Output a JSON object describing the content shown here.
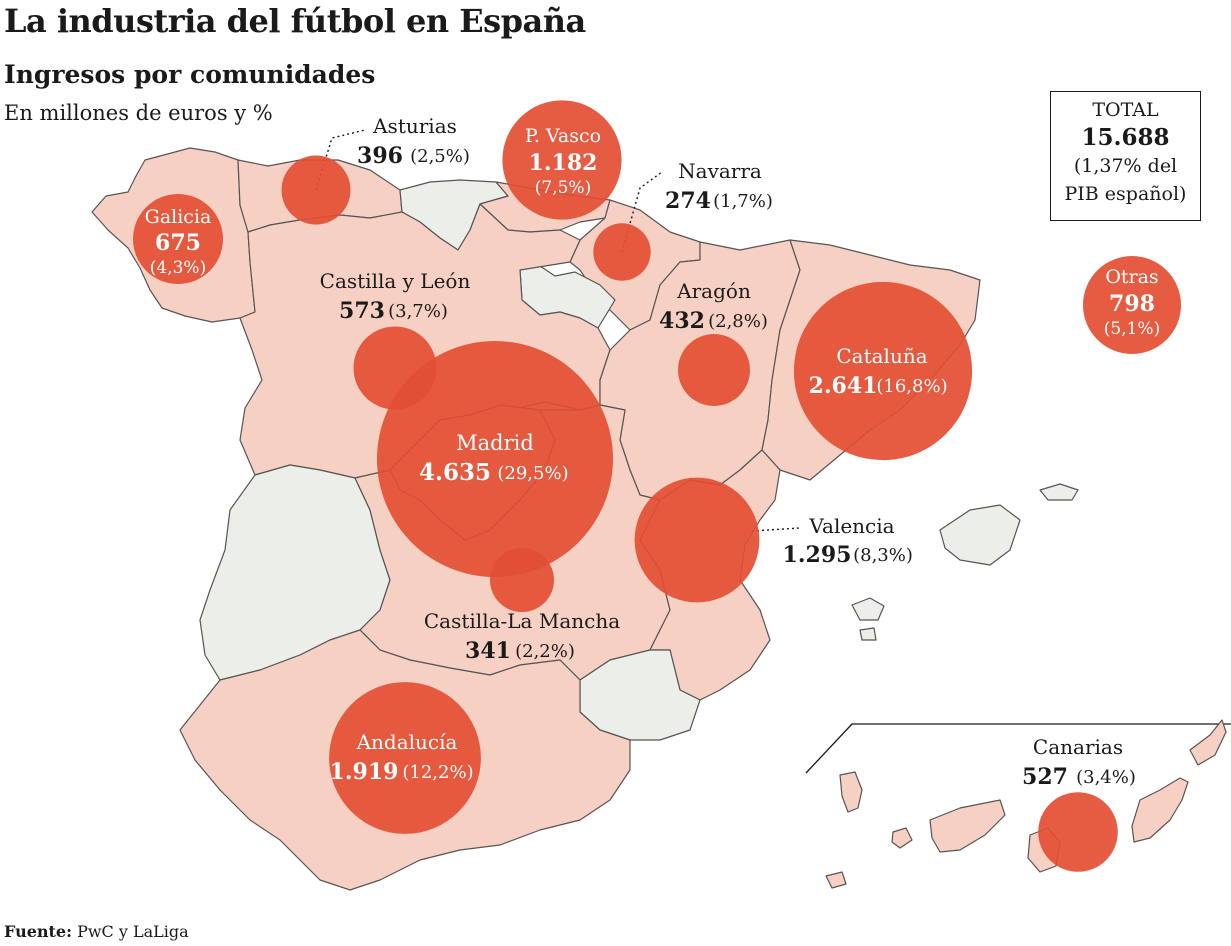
{
  "title": "La industria del fútbol en España",
  "subtitle": "Ingresos por comunidades",
  "units": "En millones de euros y %",
  "source_label": "Fuente:",
  "source_text": "PwC y LaLiga",
  "total": {
    "label": "TOTAL",
    "value": "15.688",
    "note1": "(1,37% del",
    "note2": "PIB español)"
  },
  "colors": {
    "land": "#f7d0c4",
    "land_other": "#eceee9",
    "bubble": "#e34e33",
    "border": "#555555"
  },
  "regions": [
    {
      "name": "Galicia",
      "value": "675",
      "pct": "(4,3%)",
      "revenue": 675
    },
    {
      "name": "Asturias",
      "value": "396",
      "pct": "(2,5%)",
      "revenue": 396
    },
    {
      "name": "P. Vasco",
      "value": "1.182",
      "pct": "(7,5%)",
      "revenue": 1182
    },
    {
      "name": "Navarra",
      "value": "274",
      "pct": "(1,7%)",
      "revenue": 274
    },
    {
      "name": "Castilla y León",
      "value": "573",
      "pct": "(3,7%)",
      "revenue": 573
    },
    {
      "name": "Aragón",
      "value": "432",
      "pct": "(2,8%)",
      "revenue": 432
    },
    {
      "name": "Cataluña",
      "value": "2.641",
      "pct": "(16,8%)",
      "revenue": 2641
    },
    {
      "name": "Otras",
      "value": "798",
      "pct": "(5,1%)",
      "revenue": 798
    },
    {
      "name": "Madrid",
      "value": "4.635",
      "pct": "(29,5%)",
      "revenue": 4635
    },
    {
      "name": "Valencia",
      "value": "1.295",
      "pct": "(8,3%)",
      "revenue": 1295
    },
    {
      "name": "Castilla-La Mancha",
      "value": "341",
      "pct": "(2,2%)",
      "revenue": 341
    },
    {
      "name": "Andalucía",
      "value": "1.919",
      "pct": "(12,2%)",
      "revenue": 1919
    },
    {
      "name": "Canarias",
      "value": "527",
      "pct": "(3,4%)",
      "revenue": 527
    }
  ]
}
